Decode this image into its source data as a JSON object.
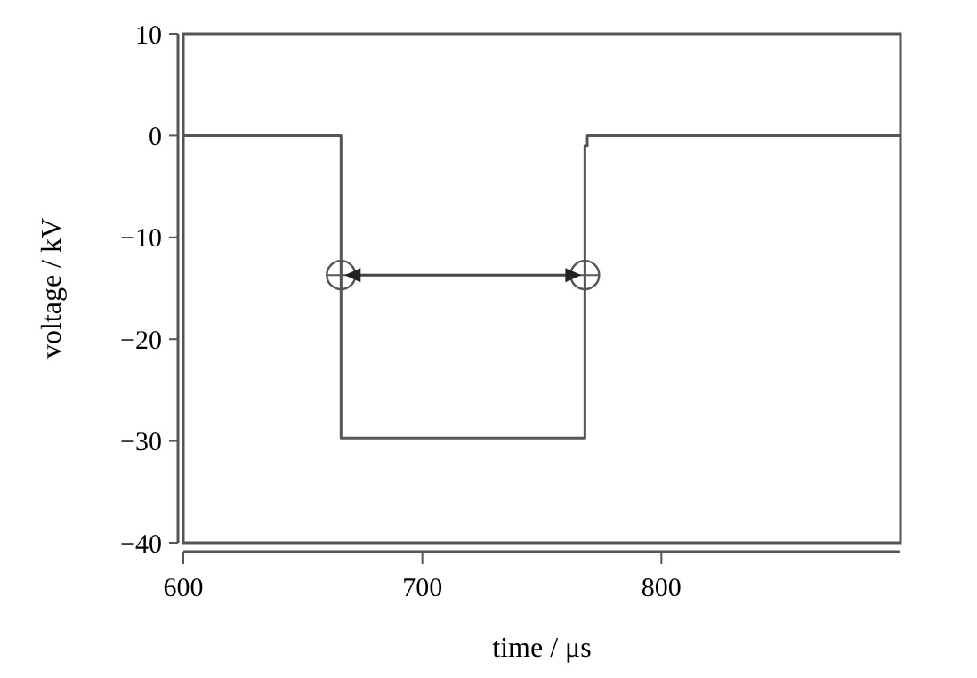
{
  "chart_data": {
    "type": "line",
    "xlabel": "time / μs",
    "ylabel": "voltage / kV",
    "xlim": [
      600,
      900
    ],
    "ylim": [
      -40,
      10
    ],
    "xticks": [
      600,
      700,
      800
    ],
    "yticks": [
      10,
      0,
      -10,
      -20,
      -30,
      -40
    ],
    "grid": false,
    "series": [
      {
        "color": "#555555",
        "x": [
          600,
          666,
          666,
          768,
          768,
          769,
          769,
          900
        ],
        "values": [
          0,
          0,
          -29.7,
          -29.7,
          -1,
          -1,
          0,
          0
        ]
      },
      {
        "type": "scatter",
        "color": "#555555",
        "marker": "circle",
        "x": [
          666,
          768
        ],
        "values": [
          -13.7,
          -13.7
        ]
      }
    ]
  }
}
